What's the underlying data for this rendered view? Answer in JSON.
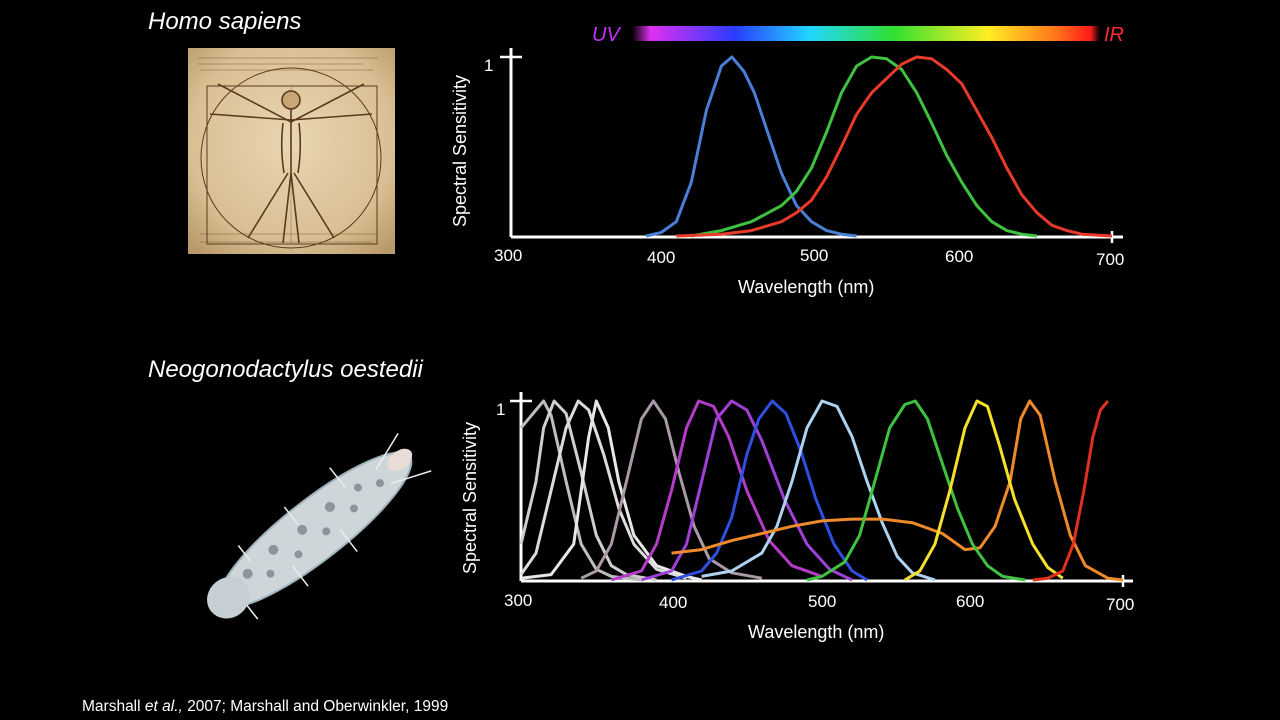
{
  "titles": {
    "human": "Homo sapiens",
    "shrimp": "Neogonodactylus oestedii"
  },
  "citation": {
    "part1": "Marshall ",
    "italic": "et al.,",
    "part2": " 2007; Marshall and Oberwinkler, 1999"
  },
  "spectrum_bar": {
    "left_label": "UV",
    "right_label": "IR",
    "left_color": "#c832ff",
    "right_color": "#ff2b2b"
  },
  "chart_data": [
    {
      "type": "line",
      "ylabel": "Spectral Sensitivity",
      "xlabel": "Wavelength (nm)",
      "xlim": [
        300,
        700
      ],
      "ylim": [
        0,
        1
      ],
      "x_ticks": [
        "300",
        "400",
        "500",
        "600",
        "700"
      ],
      "y_ticks": [
        "1"
      ],
      "series": [
        {
          "color": "#4a7fd6",
          "points": [
            [
              390,
              0
            ],
            [
              400,
              0.02
            ],
            [
              410,
              0.08
            ],
            [
              420,
              0.3
            ],
            [
              430,
              0.7
            ],
            [
              440,
              0.95
            ],
            [
              447,
              1.0
            ],
            [
              455,
              0.92
            ],
            [
              462,
              0.8
            ],
            [
              470,
              0.6
            ],
            [
              480,
              0.35
            ],
            [
              490,
              0.17
            ],
            [
              500,
              0.08
            ],
            [
              510,
              0.03
            ],
            [
              520,
              0.01
            ],
            [
              530,
              0
            ]
          ]
        },
        {
          "color": "#3fc23f",
          "points": [
            [
              420,
              0
            ],
            [
              440,
              0.03
            ],
            [
              460,
              0.08
            ],
            [
              480,
              0.17
            ],
            [
              490,
              0.25
            ],
            [
              500,
              0.38
            ],
            [
              510,
              0.58
            ],
            [
              520,
              0.8
            ],
            [
              530,
              0.95
            ],
            [
              540,
              1.0
            ],
            [
              550,
              0.99
            ],
            [
              560,
              0.93
            ],
            [
              570,
              0.8
            ],
            [
              580,
              0.63
            ],
            [
              590,
              0.45
            ],
            [
              600,
              0.3
            ],
            [
              610,
              0.17
            ],
            [
              620,
              0.08
            ],
            [
              630,
              0.03
            ],
            [
              640,
              0.01
            ],
            [
              650,
              0
            ]
          ]
        },
        {
          "color": "#e83a2a",
          "points": [
            [
              410,
              0
            ],
            [
              440,
              0.01
            ],
            [
              460,
              0.03
            ],
            [
              480,
              0.08
            ],
            [
              490,
              0.13
            ],
            [
              500,
              0.2
            ],
            [
              510,
              0.33
            ],
            [
              520,
              0.5
            ],
            [
              530,
              0.68
            ],
            [
              540,
              0.8
            ],
            [
              550,
              0.88
            ],
            [
              560,
              0.96
            ],
            [
              570,
              1.0
            ],
            [
              580,
              0.99
            ],
            [
              590,
              0.93
            ],
            [
              600,
              0.85
            ],
            [
              610,
              0.7
            ],
            [
              620,
              0.55
            ],
            [
              630,
              0.38
            ],
            [
              640,
              0.23
            ],
            [
              650,
              0.13
            ],
            [
              660,
              0.06
            ],
            [
              670,
              0.03
            ],
            [
              680,
              0.01
            ],
            [
              700,
              0
            ]
          ]
        }
      ]
    },
    {
      "type": "line",
      "ylabel": "Spectral Sensitivity",
      "xlabel": "Wavelength (nm)",
      "xlim": [
        300,
        700
      ],
      "ylim": [
        0,
        1
      ],
      "x_ticks": [
        "300",
        "400",
        "500",
        "600",
        "700"
      ],
      "y_ticks": [
        "1"
      ],
      "series": [
        {
          "color": "#bdbdbd",
          "points": [
            [
              300,
              0.85
            ],
            [
              305,
              0.9
            ],
            [
              310,
              0.95
            ],
            [
              315,
              1.0
            ],
            [
              320,
              0.92
            ],
            [
              330,
              0.55
            ],
            [
              340,
              0.2
            ],
            [
              350,
              0.06
            ],
            [
              360,
              0.02
            ],
            [
              380,
              0
            ]
          ]
        },
        {
          "color": "#cfcfcf",
          "points": [
            [
              300,
              0.2
            ],
            [
              310,
              0.55
            ],
            [
              315,
              0.85
            ],
            [
              322,
              1.0
            ],
            [
              330,
              0.93
            ],
            [
              340,
              0.6
            ],
            [
              350,
              0.25
            ],
            [
              360,
              0.08
            ],
            [
              370,
              0.03
            ],
            [
              390,
              0
            ]
          ]
        },
        {
          "color": "#dcdcdc",
          "points": [
            [
              300,
              0.03
            ],
            [
              310,
              0.15
            ],
            [
              320,
              0.5
            ],
            [
              330,
              0.85
            ],
            [
              338,
              1.0
            ],
            [
              345,
              0.95
            ],
            [
              355,
              0.7
            ],
            [
              365,
              0.4
            ],
            [
              375,
              0.2
            ],
            [
              390,
              0.06
            ],
            [
              410,
              0.01
            ]
          ]
        },
        {
          "color": "#e8e8e8",
          "points": [
            [
              300,
              0.01
            ],
            [
              320,
              0.03
            ],
            [
              335,
              0.2
            ],
            [
              345,
              0.8
            ],
            [
              350,
              1.0
            ],
            [
              358,
              0.85
            ],
            [
              365,
              0.55
            ],
            [
              375,
              0.25
            ],
            [
              390,
              0.08
            ],
            [
              410,
              0.02
            ],
            [
              420,
              0
            ]
          ]
        },
        {
          "color": "#a89aa8",
          "points": [
            [
              340,
              0.01
            ],
            [
              350,
              0.05
            ],
            [
              360,
              0.2
            ],
            [
              370,
              0.55
            ],
            [
              380,
              0.9
            ],
            [
              388,
              1.0
            ],
            [
              396,
              0.9
            ],
            [
              405,
              0.6
            ],
            [
              415,
              0.3
            ],
            [
              425,
              0.12
            ],
            [
              440,
              0.04
            ],
            [
              460,
              0.01
            ]
          ]
        },
        {
          "color": "#b43cc8",
          "points": [
            [
              360,
              0
            ],
            [
              380,
              0.05
            ],
            [
              390,
              0.2
            ],
            [
              400,
              0.5
            ],
            [
              410,
              0.85
            ],
            [
              418,
              1.0
            ],
            [
              428,
              0.97
            ],
            [
              438,
              0.8
            ],
            [
              450,
              0.5
            ],
            [
              465,
              0.22
            ],
            [
              480,
              0.08
            ],
            [
              500,
              0.02
            ]
          ]
        },
        {
          "color": "#a040d8",
          "points": [
            [
              380,
              0
            ],
            [
              400,
              0.05
            ],
            [
              410,
              0.2
            ],
            [
              420,
              0.55
            ],
            [
              430,
              0.9
            ],
            [
              440,
              1.0
            ],
            [
              450,
              0.95
            ],
            [
              460,
              0.78
            ],
            [
              475,
              0.45
            ],
            [
              490,
              0.2
            ],
            [
              505,
              0.06
            ],
            [
              520,
              0
            ]
          ]
        },
        {
          "color": "#2e4fe0",
          "points": [
            [
              400,
              0
            ],
            [
              420,
              0.05
            ],
            [
              430,
              0.15
            ],
            [
              440,
              0.35
            ],
            [
              450,
              0.7
            ],
            [
              458,
              0.9
            ],
            [
              467,
              1.0
            ],
            [
              476,
              0.93
            ],
            [
              486,
              0.72
            ],
            [
              496,
              0.45
            ],
            [
              508,
              0.2
            ],
            [
              520,
              0.05
            ],
            [
              530,
              0
            ]
          ]
        },
        {
          "color": "#aed2f0",
          "points": [
            [
              420,
              0.02
            ],
            [
              440,
              0.05
            ],
            [
              460,
              0.15
            ],
            [
              470,
              0.3
            ],
            [
              480,
              0.55
            ],
            [
              490,
              0.85
            ],
            [
              500,
              1.0
            ],
            [
              510,
              0.97
            ],
            [
              520,
              0.8
            ],
            [
              530,
              0.55
            ],
            [
              540,
              0.32
            ],
            [
              550,
              0.13
            ],
            [
              560,
              0.04
            ],
            [
              575,
              0
            ]
          ]
        },
        {
          "color": "#ee8a2a",
          "points": [
            [
              400,
              0.15
            ],
            [
              420,
              0.17
            ],
            [
              440,
              0.22
            ],
            [
              460,
              0.26
            ],
            [
              480,
              0.3
            ],
            [
              500,
              0.33
            ],
            [
              520,
              0.34
            ],
            [
              540,
              0.34
            ],
            [
              560,
              0.32
            ],
            [
              580,
              0.26
            ],
            [
              595,
              0.17
            ],
            [
              605,
              0.18
            ],
            [
              615,
              0.3
            ],
            [
              625,
              0.55
            ],
            [
              632,
              0.9
            ],
            [
              638,
              1.0
            ],
            [
              645,
              0.92
            ],
            [
              655,
              0.55
            ],
            [
              665,
              0.25
            ],
            [
              675,
              0.08
            ],
            [
              690,
              0.01
            ],
            [
              700,
              0
            ]
          ]
        },
        {
          "color": "#3fc23f",
          "points": [
            [
              490,
              0
            ],
            [
              500,
              0.02
            ],
            [
              515,
              0.1
            ],
            [
              525,
              0.25
            ],
            [
              535,
              0.55
            ],
            [
              545,
              0.85
            ],
            [
              555,
              0.98
            ],
            [
              562,
              1.0
            ],
            [
              570,
              0.9
            ],
            [
              580,
              0.65
            ],
            [
              590,
              0.4
            ],
            [
              600,
              0.2
            ],
            [
              610,
              0.08
            ],
            [
              620,
              0.02
            ],
            [
              635,
              0
            ]
          ]
        },
        {
          "color": "#f5e12a",
          "points": [
            [
              555,
              0
            ],
            [
              565,
              0.05
            ],
            [
              575,
              0.2
            ],
            [
              585,
              0.5
            ],
            [
              595,
              0.85
            ],
            [
              603,
              1.0
            ],
            [
              610,
              0.97
            ],
            [
              618,
              0.75
            ],
            [
              628,
              0.45
            ],
            [
              640,
              0.2
            ],
            [
              650,
              0.07
            ],
            [
              660,
              0.01
            ]
          ]
        },
        {
          "color": "#e0301e",
          "points": [
            [
              640,
              0
            ],
            [
              650,
              0.01
            ],
            [
              660,
              0.05
            ],
            [
              667,
              0.2
            ],
            [
              674,
              0.5
            ],
            [
              680,
              0.8
            ],
            [
              685,
              0.95
            ],
            [
              690,
              1.0
            ]
          ]
        }
      ]
    }
  ]
}
